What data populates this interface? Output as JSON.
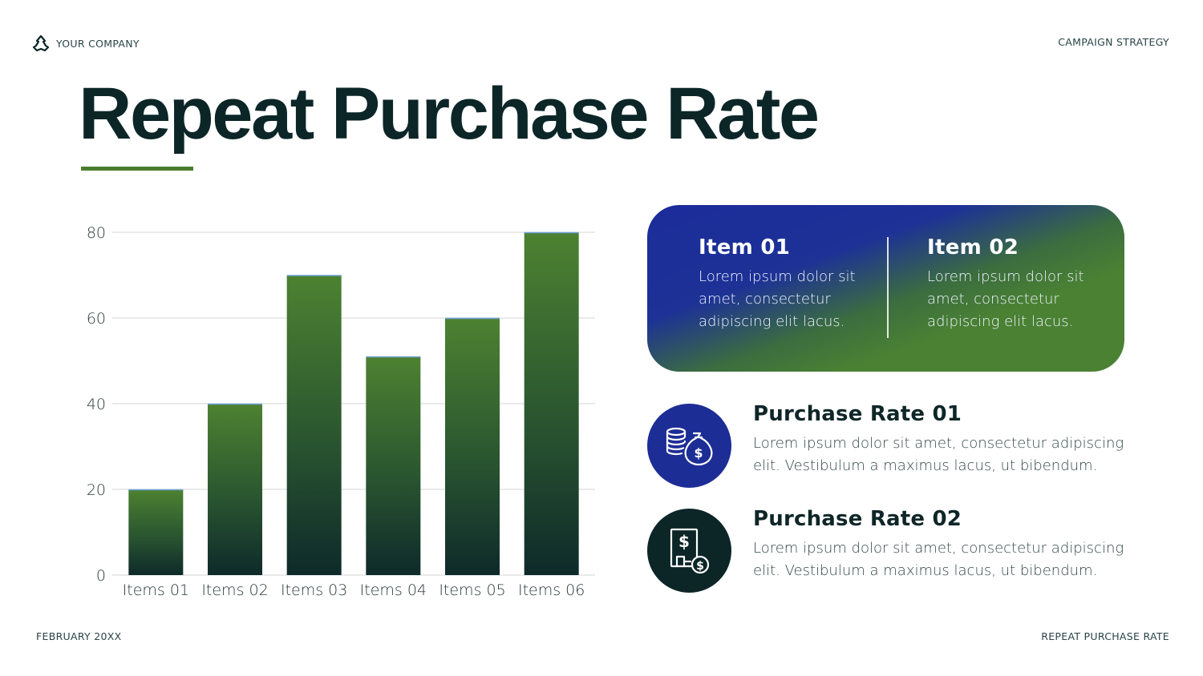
{
  "header": {
    "company": "YOUR COMPANY",
    "section": "CAMPAIGN STRATEGY"
  },
  "title": "Repeat Purchase Rate",
  "footer": {
    "date": "FEBRUARY 20XX",
    "page_label": "REPEAT PURCHASE RATE"
  },
  "colors": {
    "accent_green": "#4a7e2f",
    "dark_teal": "#0c2628",
    "royal_blue": "#1d2d96"
  },
  "chart_data": {
    "type": "bar",
    "title": "",
    "xlabel": "",
    "ylabel": "",
    "categories": [
      "Items 01",
      "Items 02",
      "Items 03",
      "Items 04",
      "Items 05",
      "Items 06"
    ],
    "values": [
      20,
      40,
      70,
      51,
      60,
      80
    ],
    "ylim": [
      0,
      80
    ],
    "yticks": [
      0,
      20,
      40,
      60,
      80
    ],
    "grid": true,
    "legend": "none"
  },
  "banner": {
    "items": [
      {
        "title": "Item 01",
        "text": "Lorem ipsum dolor sit amet, consectetur adipiscing elit lacus."
      },
      {
        "title": "Item 02",
        "text": "Lorem ipsum dolor sit amet, consectetur adipiscing elit lacus."
      }
    ]
  },
  "rates": [
    {
      "title": "Purchase Rate 01",
      "text": "Lorem ipsum dolor sit amet, consectetur adipiscing elit. Vestibulum a maximus lacus, ut bibendum.",
      "icon": "money-bag-coins-icon"
    },
    {
      "title": "Purchase Rate 02",
      "text": "Lorem ipsum dolor sit amet, consectetur adipiscing elit. Vestibulum a maximus lacus, ut bibendum.",
      "icon": "dollar-document-icon"
    }
  ]
}
